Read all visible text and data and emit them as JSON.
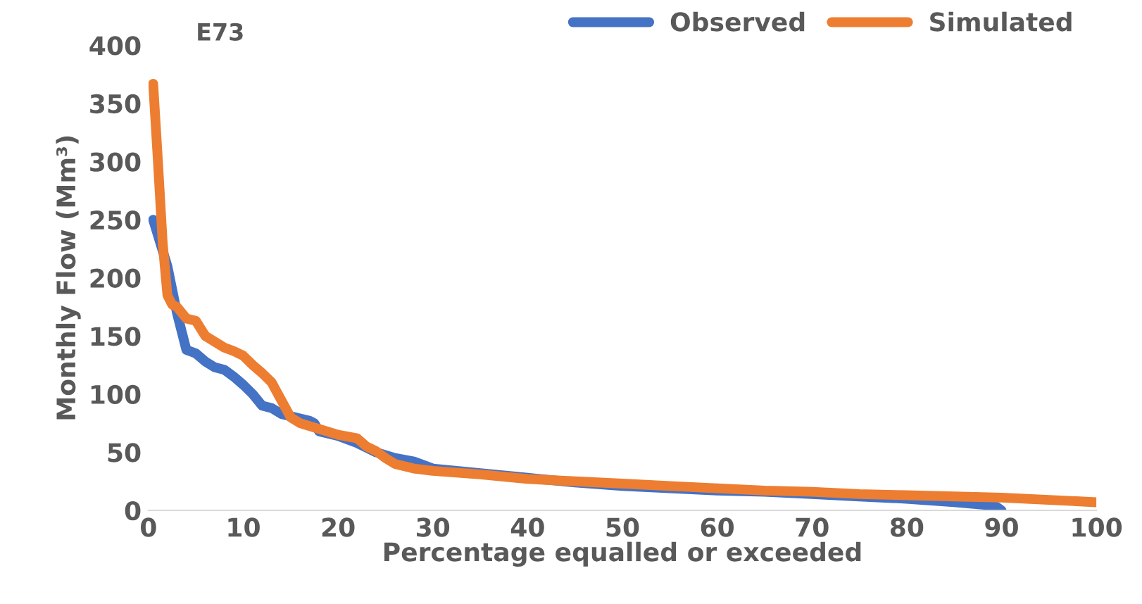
{
  "chart_data": {
    "type": "line",
    "title": "E73",
    "xlabel": "Percentage equalled or exceeded",
    "ylabel": "Monthly Flow (Mm³)",
    "xlim": [
      0,
      100
    ],
    "xticks": [
      0,
      10,
      20,
      30,
      40,
      50,
      60,
      70,
      80,
      90,
      100
    ],
    "ylim": [
      0,
      400
    ],
    "yticks": [
      0,
      50,
      100,
      150,
      200,
      250,
      300,
      350,
      400
    ],
    "grid": false,
    "legend": "top right",
    "marker": "none",
    "line_style": "solid",
    "series": [
      {
        "name": "Observed",
        "color": "#4472c4",
        "x": [
          0.5,
          2,
          3,
          4,
          5,
          6,
          7,
          8,
          9,
          10,
          11,
          12,
          13,
          14,
          16,
          17,
          17.5,
          18,
          20,
          22,
          24,
          26,
          28,
          30,
          35,
          40,
          45,
          50,
          55,
          60,
          65,
          70,
          75,
          80,
          85,
          88,
          89.5,
          90
        ],
        "values": [
          250,
          210,
          170,
          138,
          135,
          128,
          123,
          121,
          115,
          108,
          100,
          90,
          88,
          83,
          79,
          77,
          75,
          68,
          64,
          58,
          50,
          45,
          42,
          36,
          32,
          28,
          24,
          21,
          19,
          17,
          16,
          14,
          12,
          10,
          7,
          5,
          3,
          0
        ]
      },
      {
        "name": "Simulated",
        "color": "#ed7d31",
        "x": [
          0.5,
          1,
          1.5,
          2,
          2.5,
          3,
          4,
          5,
          6,
          7,
          8,
          9,
          10,
          11,
          12,
          13,
          14,
          15,
          16,
          18,
          20,
          22,
          23,
          24,
          25,
          26,
          28,
          30,
          35,
          40,
          45,
          50,
          55,
          60,
          65,
          70,
          75,
          80,
          85,
          90,
          95,
          100
        ],
        "values": [
          367,
          300,
          230,
          185,
          177,
          175,
          165,
          163,
          150,
          145,
          140,
          137,
          133,
          125,
          118,
          110,
          95,
          80,
          75,
          70,
          65,
          62,
          55,
          51,
          45,
          40,
          36,
          34,
          31,
          27,
          25,
          23,
          21,
          19,
          17,
          16,
          14,
          13,
          12,
          11,
          9,
          7
        ]
      }
    ]
  }
}
